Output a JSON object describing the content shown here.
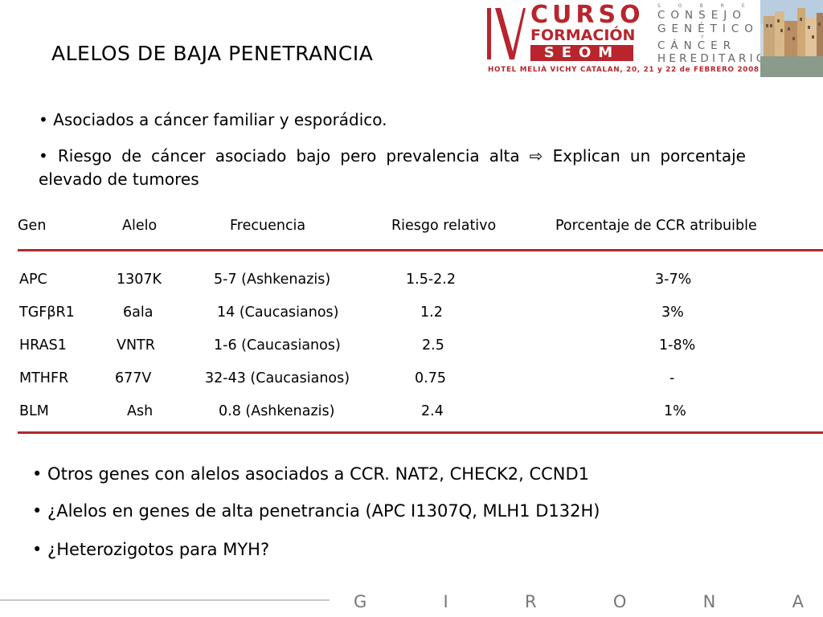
{
  "title": "ALELOS DE BAJA PENETRANCIA",
  "header": {
    "roman": "IV",
    "curso": "CURSO",
    "formacion": "FORMACIÓN",
    "seom": "SEOM",
    "hotel": "HOTEL MELIÀ VICHY CATALAN, 20, 21 y 22 de FEBRERO 2008",
    "consejo": "CONSEJO",
    "genetico": "GENÉTICO",
    "y": "Y",
    "cancer": "CÁNCER",
    "hereditario": "HEREDITARIO",
    "sobre": "SOBRE"
  },
  "bullets_top": [
    "• Asociados a cáncer familiar y esporádico.",
    "• Riesgo de cáncer asociado bajo pero prevalencia alta ⇨ Explican un porcentaje elevado de tumores"
  ],
  "table": {
    "headers": [
      "Gen",
      "Alelo",
      "Frecuencia",
      "Riesgo relativo",
      "Porcentaje de  CCR atribuible"
    ],
    "rows": [
      [
        "APC",
        "1307K",
        "5-7 (Ashkenazis)",
        "1.5-2.2",
        "3-7%"
      ],
      [
        "TGFβR1",
        "6ala",
        "14 (Caucasianos)",
        "1.2",
        "3%"
      ],
      [
        "HRAS1",
        "VNTR",
        "1-6 (Caucasianos)",
        "2.5",
        "1-8%"
      ],
      [
        "MTHFR",
        "677V",
        "32-43 (Caucasianos)",
        "0.75",
        "-"
      ],
      [
        "BLM",
        "Ash",
        "0.8 (Ashkenazis)",
        "2.4",
        "1%"
      ]
    ]
  },
  "bullets_bottom": [
    "• Otros genes  con alelos asociados a CCR. NAT2, CHECK2, CCND1",
    "• ¿Alelos en genes de alta penetrancia (APC I1307Q, MLH1 D132H)",
    "• ¿Heterozigotos para MYH?"
  ],
  "footer": {
    "letters": [
      "G",
      "I",
      "R",
      "O",
      "N",
      "A"
    ]
  },
  "colors": {
    "brand_red": "#b8252d",
    "rule_red": "#b02a2a",
    "logo_gray": "#666666"
  }
}
